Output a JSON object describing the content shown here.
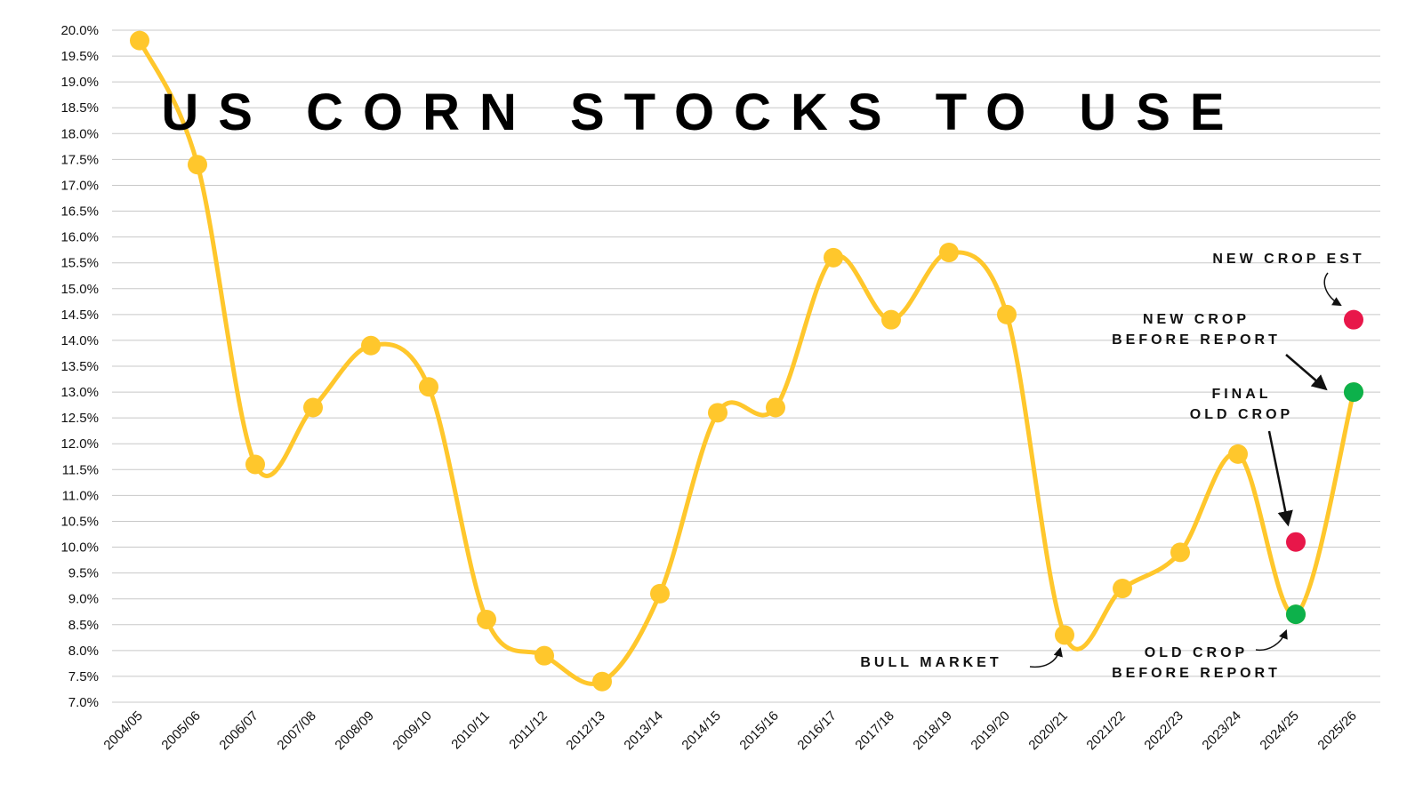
{
  "chart_data": {
    "type": "line",
    "title": "US CORN STOCKS TO USE",
    "xlabel": "",
    "ylabel": "",
    "ylim": [
      7.0,
      20.0
    ],
    "ytick_step": 0.5,
    "y_unit": "%",
    "grid": true,
    "categories": [
      "2004/05",
      "2005/06",
      "2006/07",
      "2007/08",
      "2008/09",
      "2009/10",
      "2010/11",
      "2011/12",
      "2012/13",
      "2013/14",
      "2014/15",
      "2015/16",
      "2016/17",
      "2017/18",
      "2018/19",
      "2019/20",
      "2020/21",
      "2021/22",
      "2022/23",
      "2023/24",
      "2024/25",
      "2025/26"
    ],
    "series": [
      {
        "color": "#FFC72C",
        "values": [
          19.8,
          17.4,
          11.6,
          12.7,
          13.9,
          13.1,
          8.6,
          7.9,
          7.4,
          9.1,
          12.6,
          12.7,
          15.6,
          14.4,
          15.7,
          14.5,
          8.3,
          9.2,
          9.9,
          11.8,
          8.7,
          13.0
        ]
      }
    ],
    "extra_points": [
      {
        "category": "2024/25",
        "value": 10.1,
        "color": "#E8174A"
      },
      {
        "category": "2025/26",
        "value": 14.4,
        "color": "#E8174A"
      }
    ],
    "highlight_points": [
      {
        "category": "2024/25",
        "value": 8.7,
        "color": "#0DB14B"
      },
      {
        "category": "2025/26",
        "value": 13.0,
        "color": "#0DB14B"
      }
    ],
    "annotations": [
      {
        "id": "bull",
        "lines": [
          "BULL MARKET"
        ]
      },
      {
        "id": "oldcrop-before",
        "lines": [
          "OLD CROP",
          "BEFORE REPORT"
        ]
      },
      {
        "id": "final-old",
        "lines": [
          "FINAL",
          "OLD CROP"
        ]
      },
      {
        "id": "newcrop-before",
        "lines": [
          "NEW CROP",
          "BEFORE REPORT"
        ]
      },
      {
        "id": "newcrop-est",
        "lines": [
          "NEW CROP EST"
        ]
      }
    ]
  }
}
